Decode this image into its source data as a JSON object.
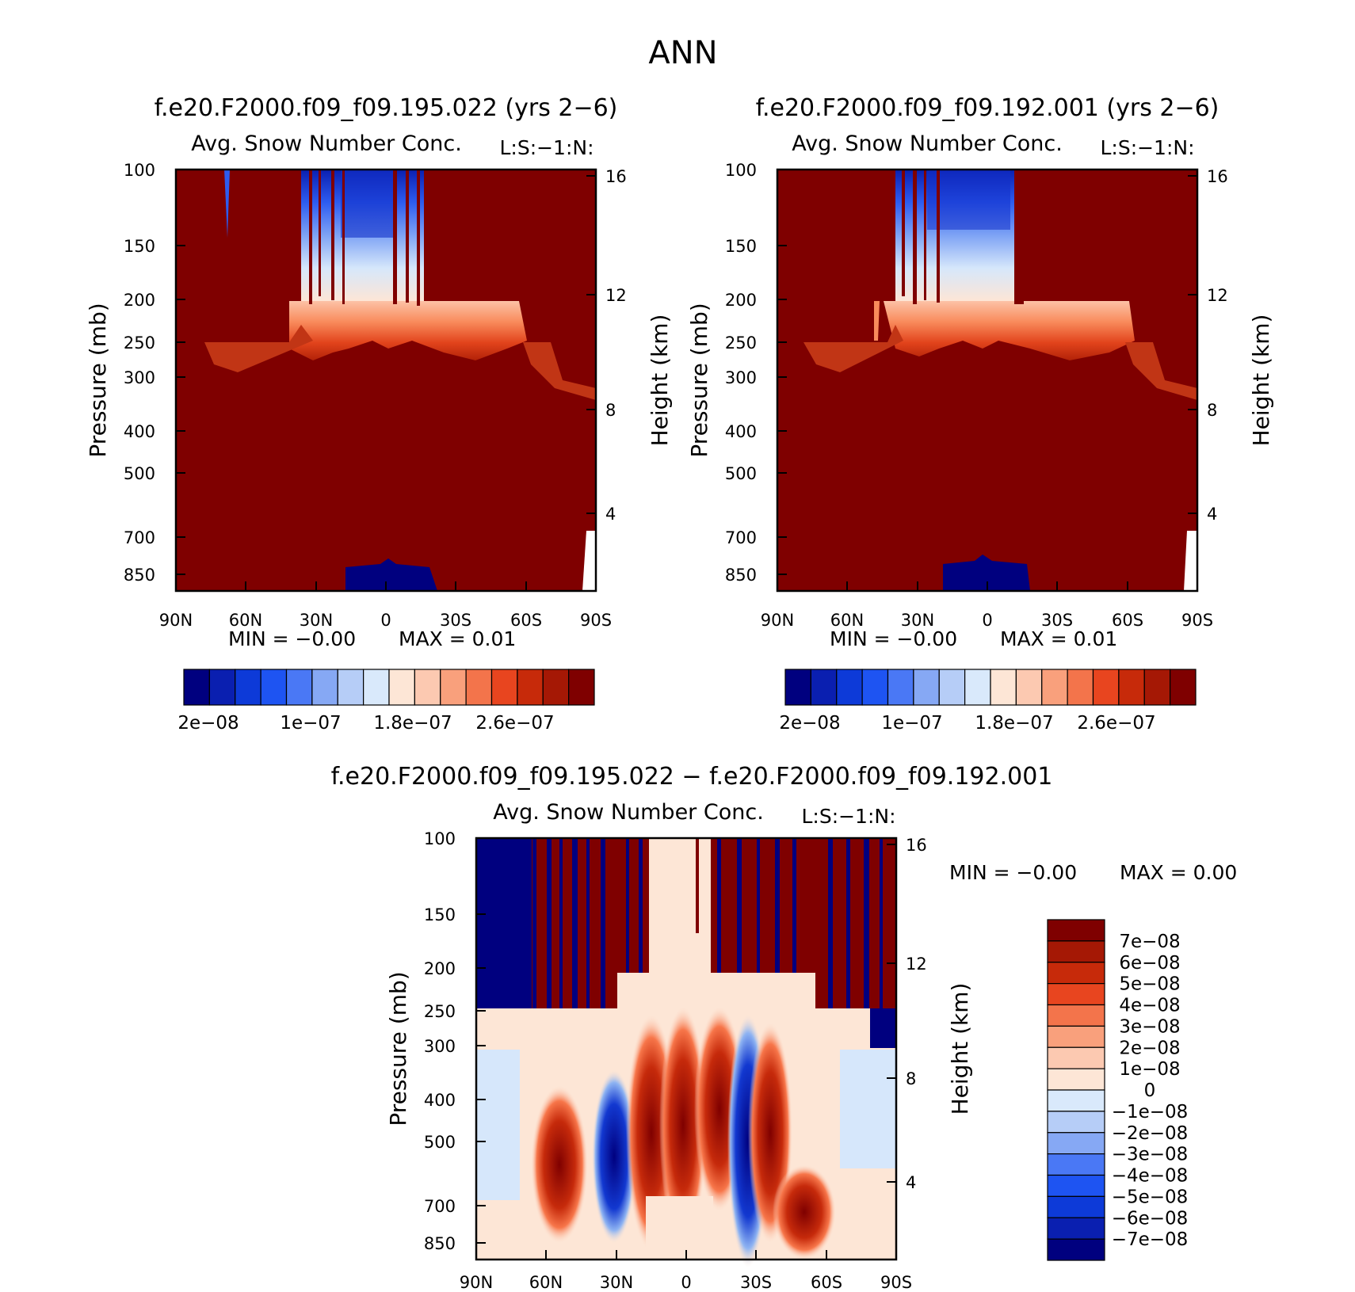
{
  "figure": {
    "main_title": "ANN",
    "colors": {
      "blue_deep": "#00007f",
      "red_deep": "#7f0000",
      "pale": "#fde6d6"
    }
  },
  "panels": [
    {
      "id": "left",
      "case_title": "f.e20.F2000.f09_f09.195.022 (yrs 2−6)",
      "var_title": "Avg. Snow Number Conc.",
      "units": "L:S:−1:N:",
      "y_label": "Pressure (mb)",
      "y2_label": "Height (km)",
      "min_text": "MIN = −0.00",
      "max_text": "MAX = 0.01",
      "x_ticks": [
        "90N",
        "60N",
        "30N",
        "0",
        "30S",
        "60S",
        "90S"
      ],
      "y_ticks": [
        "100",
        "150",
        "200",
        "250",
        "300",
        "400",
        "500",
        "700",
        "850"
      ],
      "y2_ticks": [
        "16",
        "12",
        "8",
        "4"
      ],
      "colorbar_labels": [
        "2e−08",
        "1e−07",
        "1.8e−07",
        "2.6e−07"
      ]
    },
    {
      "id": "right",
      "case_title": "f.e20.F2000.f09_f09.192.001 (yrs 2−6)",
      "var_title": "Avg. Snow Number Conc.",
      "units": "L:S:−1:N:",
      "y_label": "Pressure (mb)",
      "y2_label": "Height (km)",
      "min_text": "MIN = −0.00",
      "max_text": "MAX = 0.01",
      "x_ticks": [
        "90N",
        "60N",
        "30N",
        "0",
        "30S",
        "60S",
        "90S"
      ],
      "y_ticks": [
        "100",
        "150",
        "200",
        "250",
        "300",
        "400",
        "500",
        "700",
        "850"
      ],
      "y2_ticks": [
        "16",
        "12",
        "8",
        "4"
      ],
      "colorbar_labels": [
        "2e−08",
        "1e−07",
        "1.8e−07",
        "2.6e−07"
      ]
    },
    {
      "id": "diff",
      "case_title": "f.e20.F2000.f09_f09.195.022 − f.e20.F2000.f09_f09.192.001",
      "var_title": "Avg. Snow Number Conc.",
      "units": "L:S:−1:N:",
      "y_label": "Pressure (mb)",
      "y2_label": "Height (km)",
      "min_text": "MIN = −0.00",
      "max_text": "MAX = 0.00",
      "x_ticks": [
        "90N",
        "60N",
        "30N",
        "0",
        "30S",
        "60S",
        "90S"
      ],
      "y_ticks": [
        "100",
        "150",
        "200",
        "250",
        "300",
        "400",
        "500",
        "700",
        "850"
      ],
      "y2_ticks": [
        "16",
        "12",
        "8",
        "4"
      ],
      "colorbar_labels": [
        "7e−08",
        "6e−08",
        "5e−08",
        "4e−08",
        "3e−08",
        "2e−08",
        "1e−08",
        "0",
        "−1e−08",
        "−2e−08",
        "−3e−08",
        "−4e−08",
        "−5e−08",
        "−6e−08",
        "−7e−08"
      ]
    }
  ],
  "chart_data": [
    {
      "type": "heatmap",
      "title": "f.e20.F2000.f09_f09.195.022 (yrs 2−6)",
      "xlabel": "",
      "ylabel": "Pressure (mb)",
      "x": [
        "90N",
        "60N",
        "30N",
        "0",
        "30S",
        "60S",
        "90S"
      ],
      "y": [
        100,
        150,
        200,
        250,
        300,
        400,
        500,
        700,
        850
      ],
      "y_scale": "log",
      "y_inverted": true,
      "y2": {
        "label": "Height (km)",
        "ticks": [
          16,
          12,
          8,
          4
        ]
      },
      "colorbar_ticks": [
        2e-08,
        1e-07,
        1.8e-07,
        2.6e-07
      ],
      "min": -0.0,
      "max": 0.01
    },
    {
      "type": "heatmap",
      "title": "f.e20.F2000.f09_f09.192.001 (yrs 2−6)",
      "xlabel": "",
      "ylabel": "Pressure (mb)",
      "x": [
        "90N",
        "60N",
        "30N",
        "0",
        "30S",
        "60S",
        "90S"
      ],
      "y": [
        100,
        150,
        200,
        250,
        300,
        400,
        500,
        700,
        850
      ],
      "y_scale": "log",
      "y_inverted": true,
      "y2": {
        "label": "Height (km)",
        "ticks": [
          16,
          12,
          8,
          4
        ]
      },
      "colorbar_ticks": [
        2e-08,
        1e-07,
        1.8e-07,
        2.6e-07
      ],
      "min": -0.0,
      "max": 0.01
    },
    {
      "type": "heatmap",
      "title": "f.e20.F2000.f09_f09.195.022 − f.e20.F2000.f09_f09.192.001",
      "xlabel": "",
      "ylabel": "Pressure (mb)",
      "x": [
        "90N",
        "60N",
        "30N",
        "0",
        "30S",
        "60S",
        "90S"
      ],
      "y": [
        100,
        150,
        200,
        250,
        300,
        400,
        500,
        700,
        850
      ],
      "y_scale": "log",
      "y_inverted": true,
      "y2": {
        "label": "Height (km)",
        "ticks": [
          16,
          12,
          8,
          4
        ]
      },
      "colorbar_ticks": [
        7e-08,
        6e-08,
        5e-08,
        4e-08,
        3e-08,
        2e-08,
        1e-08,
        0,
        -1e-08,
        -2e-08,
        -3e-08,
        -4e-08,
        -5e-08,
        -6e-08,
        -7e-08
      ],
      "min": -0.0,
      "max": 0.0
    }
  ]
}
